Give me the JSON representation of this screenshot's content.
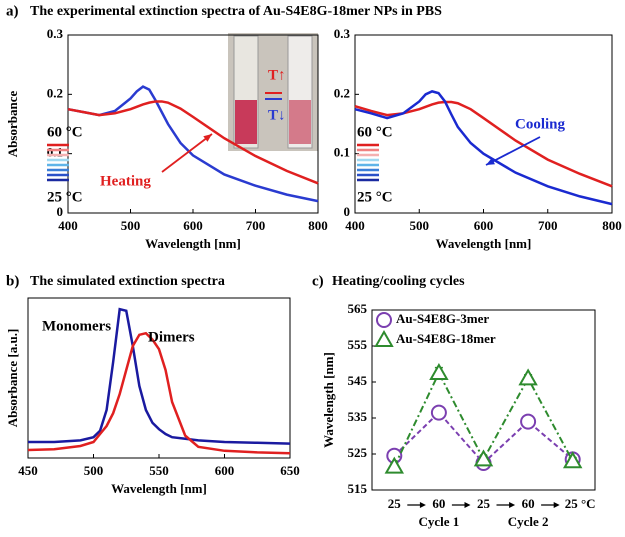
{
  "chart_data": [
    {
      "type": "line",
      "label": "a)",
      "title": "The experimental extinction spectra of Au-S4E8G-18mer NPs in PBS",
      "xlabel": "Wavelength [nm]",
      "ylabel": "Absorbance",
      "xlim": [
        400,
        800
      ],
      "xticks": [
        400,
        500,
        600,
        700,
        800
      ],
      "ylim": [
        0,
        0.3
      ],
      "yticks": [
        0,
        0.1,
        0.2,
        0.3
      ],
      "x": [
        400,
        425,
        450,
        475,
        500,
        510,
        520,
        530,
        540,
        550,
        560,
        580,
        600,
        650,
        700,
        750,
        800
      ],
      "series": [
        {
          "color": "#2a3bd0",
          "values": [
            0.175,
            0.17,
            0.165,
            0.172,
            0.193,
            0.205,
            0.213,
            0.208,
            0.19,
            0.17,
            0.15,
            0.118,
            0.097,
            0.065,
            0.046,
            0.031,
            0.02
          ]
        },
        {
          "color": "#e02020",
          "values": [
            0.175,
            0.17,
            0.165,
            0.168,
            0.175,
            0.179,
            0.183,
            0.186,
            0.188,
            0.188,
            0.186,
            0.176,
            0.162,
            0.126,
            0.096,
            0.071,
            0.05
          ]
        }
      ],
      "scale_colors": [
        "#e02020",
        "#f08080",
        "#f4b0b0",
        "#9fd8f0",
        "#5fb4e8",
        "#3a7fd8",
        "#2a50c8",
        "#1a2aa0"
      ],
      "annotations": [
        {
          "text": "60 °C",
          "color": "#000000"
        },
        {
          "text": "25 °C",
          "color": "#000000"
        },
        {
          "text": "Heating",
          "color": "#e02020"
        },
        {
          "text": "T↑",
          "color": "#e02020"
        },
        {
          "text": "T↓",
          "color": "#2a3bd0"
        }
      ]
    },
    {
      "type": "line",
      "xlabel": "Wavelength [nm]",
      "xlim": [
        400,
        800
      ],
      "xticks": [
        400,
        500,
        600,
        700,
        800
      ],
      "ylim": [
        0,
        0.3
      ],
      "yticks": [
        0,
        0.1,
        0.2,
        0.3
      ],
      "x": [
        400,
        425,
        450,
        475,
        500,
        510,
        520,
        530,
        540,
        550,
        560,
        580,
        600,
        650,
        700,
        750,
        800
      ],
      "series": [
        {
          "color": "#e02020",
          "values": [
            0.18,
            0.172,
            0.165,
            0.168,
            0.175,
            0.179,
            0.183,
            0.186,
            0.187,
            0.187,
            0.185,
            0.175,
            0.16,
            0.122,
            0.09,
            0.066,
            0.045
          ]
        },
        {
          "color": "#1a2ad0",
          "values": [
            0.175,
            0.168,
            0.16,
            0.168,
            0.188,
            0.2,
            0.205,
            0.202,
            0.188,
            0.166,
            0.145,
            0.118,
            0.1,
            0.068,
            0.045,
            0.028,
            0.015
          ]
        }
      ],
      "scale_colors": [
        "#e02020",
        "#f08080",
        "#f4b0b0",
        "#9fd8f0",
        "#5fb4e8",
        "#3a7fd8",
        "#2a50c8",
        "#1a2aa0"
      ],
      "annotations": [
        {
          "text": "60 °C",
          "color": "#000000"
        },
        {
          "text": "25 °C",
          "color": "#000000"
        },
        {
          "text": "Cooling",
          "color": "#1a2ad0"
        }
      ]
    },
    {
      "type": "line",
      "label": "b)",
      "title": "The simulated extinction spectra",
      "xlabel": "Wavelength [nm]",
      "ylabel": "Absorbance [a.u.]",
      "xlim": [
        450,
        650
      ],
      "xticks": [
        450,
        500,
        550,
        600,
        650
      ],
      "ylim": [
        0,
        1
      ],
      "x": [
        450,
        470,
        490,
        500,
        505,
        510,
        515,
        520,
        525,
        530,
        535,
        540,
        545,
        550,
        555,
        560,
        570,
        580,
        600,
        625,
        650
      ],
      "series": [
        {
          "color": "#1a1aa0",
          "values": [
            0.1,
            0.1,
            0.11,
            0.13,
            0.17,
            0.3,
            0.6,
            0.93,
            0.92,
            0.7,
            0.45,
            0.3,
            0.22,
            0.18,
            0.15,
            0.13,
            0.12,
            0.11,
            0.1,
            0.095,
            0.09
          ]
        },
        {
          "color": "#e02020",
          "values": [
            0.05,
            0.055,
            0.075,
            0.1,
            0.15,
            0.2,
            0.28,
            0.4,
            0.55,
            0.7,
            0.77,
            0.78,
            0.74,
            0.68,
            0.55,
            0.35,
            0.14,
            0.07,
            0.045,
            0.035,
            0.03
          ]
        }
      ],
      "annotations": [
        {
          "text": "Monomers",
          "color": "#000000"
        },
        {
          "text": "Dimers",
          "color": "#000000"
        }
      ]
    },
    {
      "type": "cycle",
      "label": "c)",
      "title": "Heating/cooling cycles",
      "ylabel": "Wavelength [nm]",
      "categories": [
        "25",
        "60",
        "25",
        "60",
        "25 °C"
      ],
      "group_labels": [
        "Cycle 1",
        "Cycle 2"
      ],
      "ylim": [
        515,
        565
      ],
      "yticks": [
        515,
        525,
        535,
        545,
        555,
        565
      ],
      "legend": "upper left",
      "series": [
        {
          "name": "Au-S4E8G-3mer",
          "color": "#7b3fb0",
          "marker": "circle",
          "linestyle": "dashed",
          "values": [
            524.5,
            536.5,
            522.5,
            534,
            523.5
          ],
          "errors": [
            1,
            1.5,
            1,
            1.5,
            1
          ]
        },
        {
          "name": "Au-S4E8G-18mer",
          "color": "#2e8b2e",
          "marker": "triangle",
          "linestyle": "dashdot",
          "values": [
            521.5,
            547.5,
            523.5,
            546,
            523
          ],
          "errors": [
            1,
            1.5,
            1,
            1,
            1
          ]
        }
      ]
    }
  ]
}
